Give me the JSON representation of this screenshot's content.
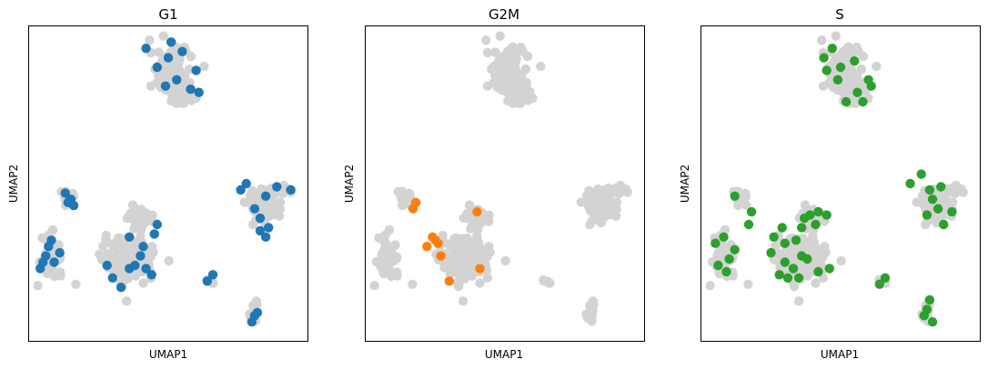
{
  "chart_data": [
    {
      "type": "scatter",
      "title": "G1",
      "xlabel": "UMAP1",
      "ylabel": "UMAP2",
      "grid": false,
      "xlim": [
        0,
        10
      ],
      "ylim": [
        0,
        10
      ],
      "highlight_color": "#1f77b4",
      "background_color": "#d3d3d3",
      "series": [
        {
          "values": [
            [
              5.0,
              9.0
            ],
            [
              5.5,
              9.2
            ],
            [
              4.2,
              9.3
            ],
            [
              6.0,
              8.6
            ],
            [
              5.3,
              8.3
            ],
            [
              5.8,
              8.0
            ],
            [
              4.6,
              8.7
            ],
            [
              5.1,
              9.5
            ],
            [
              4.9,
              8.1
            ],
            [
              6.1,
              7.9
            ]
          ]
        },
        {
          "values": [
            [
              1.3,
              4.7
            ],
            [
              1.5,
              4.5
            ],
            [
              1.6,
              4.3
            ],
            [
              1.4,
              4.4
            ],
            [
              0.8,
              3.2
            ],
            [
              0.6,
              2.7
            ],
            [
              0.9,
              2.5
            ],
            [
              0.4,
              2.3
            ],
            [
              1.1,
              2.8
            ],
            [
              0.7,
              3.0
            ],
            [
              0.5,
              2.5
            ],
            [
              2.8,
              2.4
            ],
            [
              3.0,
              2.0
            ],
            [
              3.6,
              2.3
            ],
            [
              3.3,
              1.7
            ],
            [
              4.0,
              2.7
            ],
            [
              4.5,
              3.4
            ],
            [
              4.4,
              2.1
            ],
            [
              3.8,
              2.4
            ],
            [
              4.2,
              2.3
            ],
            [
              4.1,
              3.0
            ],
            [
              4.6,
              3.7
            ],
            [
              3.6,
              3.3
            ],
            [
              6.4,
              1.9
            ],
            [
              6.6,
              2.1
            ],
            [
              7.6,
              4.8
            ],
            [
              8.1,
              4.2
            ],
            [
              8.5,
              4.6
            ],
            [
              8.9,
              4.9
            ],
            [
              9.4,
              4.8
            ],
            [
              8.3,
              3.9
            ],
            [
              8.6,
              3.6
            ],
            [
              8.5,
              3.3
            ],
            [
              7.8,
              5.0
            ],
            [
              8.3,
              3.5
            ],
            [
              8.1,
              0.8
            ],
            [
              8.0,
              0.6
            ],
            [
              8.2,
              0.9
            ]
          ]
        }
      ]
    },
    {
      "type": "scatter",
      "title": "G2M",
      "xlabel": "UMAP1",
      "ylabel": "UMAP2",
      "grid": false,
      "xlim": [
        0,
        10
      ],
      "ylim": [
        0,
        10
      ],
      "highlight_color": "#ff7f0e",
      "background_color": "#d3d3d3",
      "series": [
        {
          "values": [
            [
              1.7,
              4.2
            ],
            [
              1.8,
              4.4
            ],
            [
              2.2,
              3.0
            ],
            [
              2.5,
              3.2
            ],
            [
              2.4,
              3.3
            ],
            [
              2.6,
              3.1
            ],
            [
              2.7,
              2.7
            ],
            [
              3.0,
              1.9
            ],
            [
              4.0,
              4.1
            ],
            [
              4.1,
              2.3
            ]
          ]
        }
      ]
    },
    {
      "type": "scatter",
      "title": "S",
      "xlabel": "UMAP1",
      "ylabel": "UMAP2",
      "grid": false,
      "xlim": [
        0,
        10
      ],
      "ylim": [
        0,
        10
      ],
      "highlight_color": "#2ca02c",
      "background_color": "#d3d3d3",
      "series": [
        {
          "values": [
            [
              4.7,
              9.3
            ],
            [
              4.4,
              9.0
            ],
            [
              5.0,
              8.7
            ],
            [
              5.5,
              8.9
            ],
            [
              6.0,
              8.3
            ],
            [
              5.6,
              7.9
            ],
            [
              5.2,
              7.6
            ],
            [
              4.9,
              8.3
            ],
            [
              4.5,
              8.6
            ],
            [
              5.8,
              7.6
            ],
            [
              6.1,
              8.1
            ],
            [
              1.2,
              4.6
            ],
            [
              1.8,
              4.1
            ],
            [
              1.7,
              3.7
            ],
            [
              0.5,
              3.1
            ],
            [
              0.8,
              3.3
            ],
            [
              1.0,
              2.6
            ],
            [
              0.6,
              2.4
            ],
            [
              0.9,
              2.2
            ],
            [
              1.2,
              2.9
            ],
            [
              2.6,
              3.3
            ],
            [
              2.9,
              3.6
            ],
            [
              2.5,
              2.8
            ],
            [
              3.0,
              2.5
            ],
            [
              3.3,
              2.3
            ],
            [
              3.6,
              2.7
            ],
            [
              3.4,
              3.2
            ],
            [
              2.8,
              2.1
            ],
            [
              3.1,
              2.0
            ],
            [
              3.5,
              2.0
            ],
            [
              3.8,
              2.6
            ],
            [
              4.2,
              2.2
            ],
            [
              3.6,
              3.6
            ],
            [
              3.7,
              3.9
            ],
            [
              3.9,
              4.0
            ],
            [
              4.2,
              4.1
            ],
            [
              4.5,
              4.0
            ],
            [
              4.1,
              3.7
            ],
            [
              4.6,
              2.3
            ],
            [
              3.0,
              3.1
            ],
            [
              6.4,
              1.8
            ],
            [
              6.6,
              2.0
            ],
            [
              7.5,
              5.0
            ],
            [
              7.9,
              5.3
            ],
            [
              8.2,
              4.8
            ],
            [
              8.6,
              4.9
            ],
            [
              8.5,
              4.2
            ],
            [
              9.0,
              4.1
            ],
            [
              8.7,
              3.7
            ],
            [
              8.3,
              4.5
            ],
            [
              8.1,
              4.0
            ],
            [
              8.2,
              1.3
            ],
            [
              8.0,
              0.8
            ],
            [
              8.3,
              0.6
            ],
            [
              8.1,
              1.0
            ]
          ]
        }
      ]
    }
  ]
}
